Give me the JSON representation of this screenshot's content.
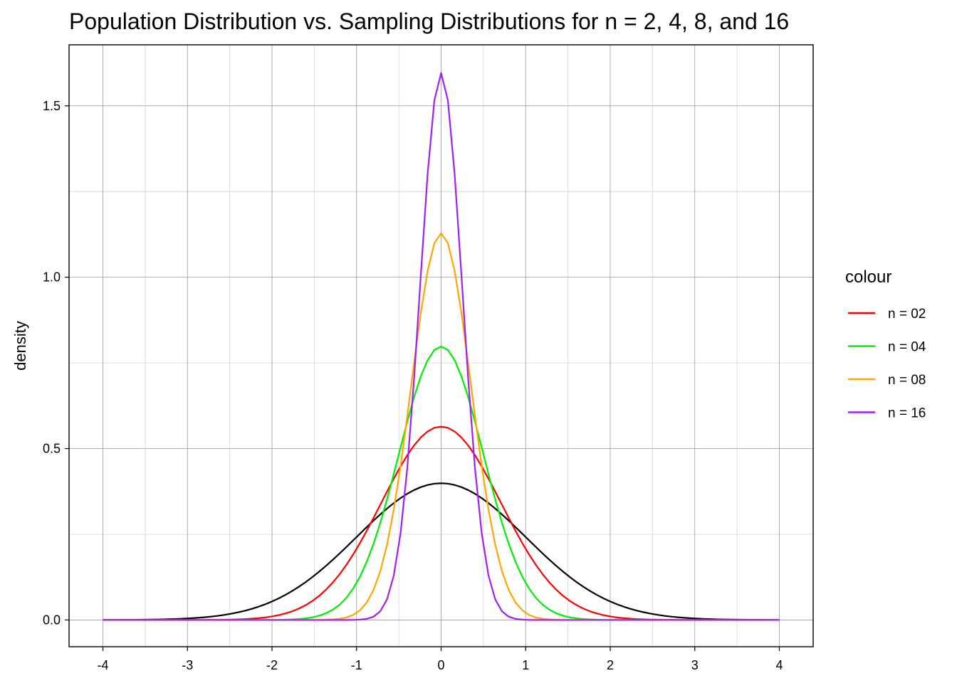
{
  "chart_data": {
    "type": "line",
    "title": "Population Distribution vs. Sampling Distributions for n = 2, 4, 8, and 16",
    "xlabel": "",
    "ylabel": "density",
    "xlim": [
      -4.4,
      4.4
    ],
    "ylim": [
      -0.078,
      1.678
    ],
    "x_ticks": [
      "-4",
      "-3",
      "-2",
      "-1",
      "0",
      "1",
      "2",
      "3",
      "4"
    ],
    "y_ticks": [
      "0.0",
      "0.5",
      "1.0",
      "1.5"
    ],
    "grid": true,
    "x_range": [
      -4,
      4
    ],
    "n_points": 101,
    "legend": {
      "title": "colour",
      "placement": "right",
      "entries": [
        "n = 02",
        "n = 04",
        "n = 08",
        "n = 16"
      ]
    },
    "series": [
      {
        "n": 1,
        "sd": 1.0,
        "color": "#000000"
      },
      {
        "name": "n = 02",
        "n": 2,
        "sd": 0.7071,
        "color": "#ff0000"
      },
      {
        "name": "n = 04",
        "n": 4,
        "sd": 0.5,
        "color": "#00ee00"
      },
      {
        "name": "n = 08",
        "n": 8,
        "sd": 0.3536,
        "color": "#ffa500"
      },
      {
        "name": "n = 16",
        "n": 16,
        "sd": 0.25,
        "color": "#a020f0"
      }
    ]
  }
}
